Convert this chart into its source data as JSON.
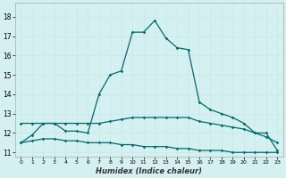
{
  "xlabel": "Humidex (Indice chaleur)",
  "bg_color": "#d4f0f0",
  "grid_color": "#c8e8e8",
  "line_color": "#006b6b",
  "xlim": [
    -0.5,
    23.5
  ],
  "ylim": [
    10.8,
    18.7
  ],
  "yticks": [
    11,
    12,
    13,
    14,
    15,
    16,
    17,
    18
  ],
  "xticks": [
    0,
    1,
    2,
    3,
    4,
    5,
    6,
    7,
    8,
    9,
    10,
    11,
    12,
    13,
    14,
    15,
    16,
    17,
    18,
    19,
    20,
    21,
    22,
    23
  ],
  "main_x": [
    0,
    1,
    2,
    3,
    4,
    5,
    6,
    7,
    8,
    9,
    10,
    11,
    12,
    13,
    14,
    15,
    16,
    17,
    18,
    19,
    20,
    21,
    22,
    23
  ],
  "main_y": [
    11.5,
    11.9,
    12.5,
    12.5,
    12.1,
    12.1,
    12.0,
    14.0,
    15.0,
    15.2,
    17.2,
    17.2,
    17.8,
    16.9,
    16.4,
    16.3,
    13.6,
    13.2,
    13.0,
    12.8,
    12.5,
    12.0,
    12.0,
    11.1
  ],
  "flat_x": [
    0,
    1,
    2,
    3,
    4,
    5,
    6,
    7,
    8,
    9,
    10,
    11,
    12,
    13,
    14,
    15,
    16,
    17,
    18,
    19,
    20,
    21,
    22,
    23
  ],
  "flat_y": [
    12.5,
    12.5,
    12.5,
    12.5,
    12.5,
    12.5,
    12.5,
    12.5,
    12.6,
    12.7,
    12.8,
    12.8,
    12.8,
    12.8,
    12.8,
    12.8,
    12.6,
    12.5,
    12.4,
    12.3,
    12.2,
    12.0,
    11.8,
    11.5
  ],
  "low_x": [
    0,
    1,
    2,
    3,
    4,
    5,
    6,
    7,
    8,
    9,
    10,
    11,
    12,
    13,
    14,
    15,
    16,
    17,
    18,
    19,
    20,
    21,
    22,
    23
  ],
  "low_y": [
    11.5,
    11.6,
    11.7,
    11.7,
    11.6,
    11.6,
    11.5,
    11.5,
    11.5,
    11.4,
    11.4,
    11.3,
    11.3,
    11.3,
    11.2,
    11.2,
    11.1,
    11.1,
    11.1,
    11.0,
    11.0,
    11.0,
    11.0,
    11.0
  ]
}
